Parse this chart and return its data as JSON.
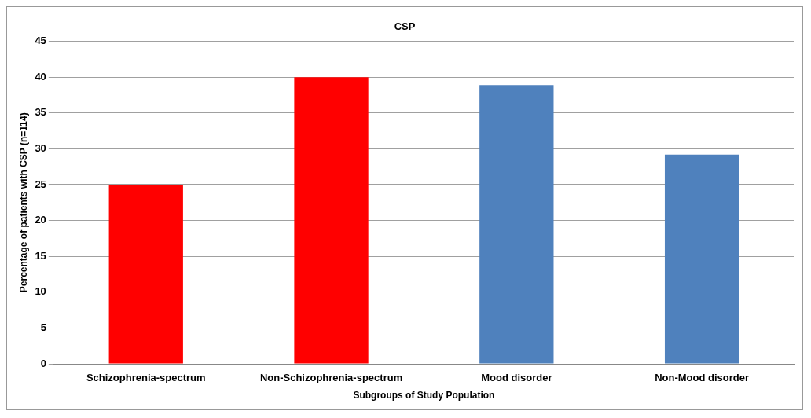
{
  "chart_data": {
    "type": "bar",
    "title": "CSP",
    "xlabel": "Subgroups of Study Population",
    "ylabel": "Percentage of patients with CSP (n=114)",
    "categories": [
      "Schizophrenia-spectrum",
      "Non-Schizophrenia-spectrum",
      "Mood disorder",
      "Non-Mood disorder"
    ],
    "values": [
      25,
      40,
      38.9,
      29.2
    ],
    "colors": [
      "#ff0000",
      "#ff0000",
      "#4f81bd",
      "#4f81bd"
    ],
    "ylim": [
      0,
      45
    ],
    "yticks": [
      0,
      5,
      10,
      15,
      20,
      25,
      30,
      35,
      40,
      45
    ],
    "grid": "y",
    "legend": false
  }
}
